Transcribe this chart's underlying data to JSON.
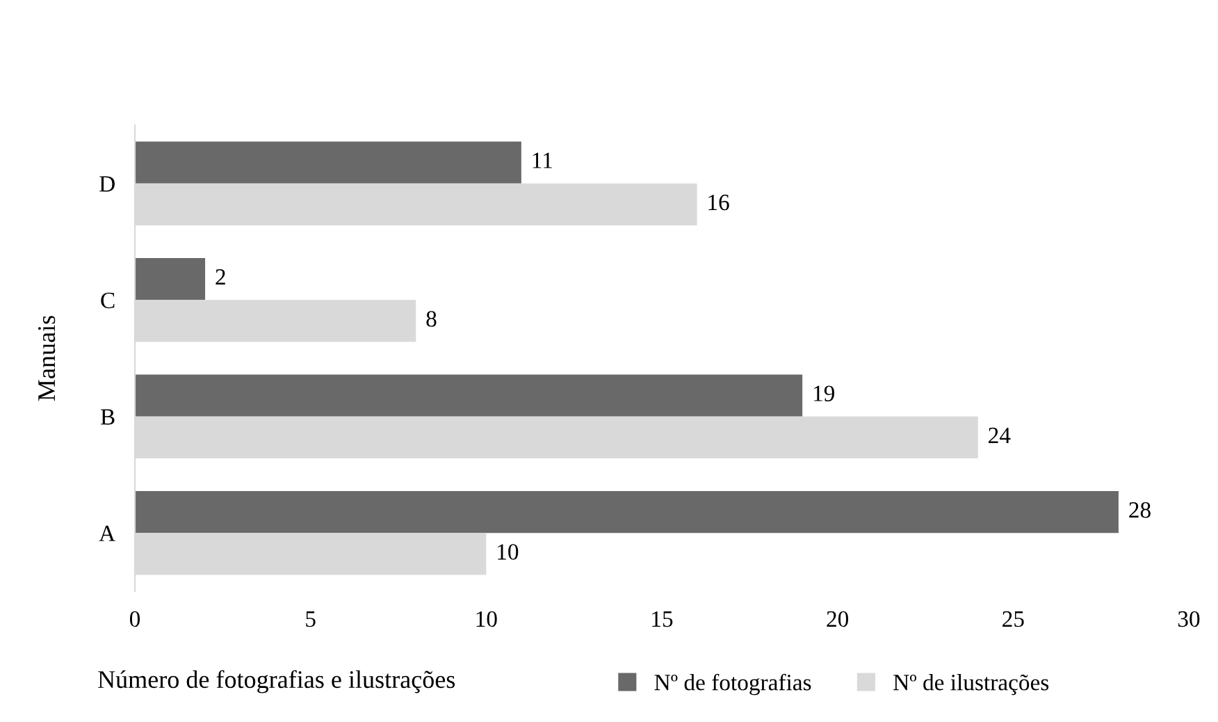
{
  "chart_data": {
    "type": "bar",
    "orientation": "horizontal",
    "ylabel": "Manuais",
    "xlabel": "Número de fotografias e ilustrações",
    "categories": [
      "D",
      "C",
      "B",
      "A"
    ],
    "series": [
      {
        "name": "Nº de fotografias",
        "color": "#696969",
        "values": [
          11,
          2,
          19,
          28
        ]
      },
      {
        "name": "Nº de ilustrações",
        "color": "#d9d9d9",
        "values": [
          16,
          8,
          24,
          10
        ]
      }
    ],
    "xlim": [
      0,
      30
    ],
    "xticks": [
      0,
      5,
      10,
      15,
      20,
      25,
      30
    ],
    "grid": false,
    "legend": "bottom right",
    "data_labels": true
  }
}
